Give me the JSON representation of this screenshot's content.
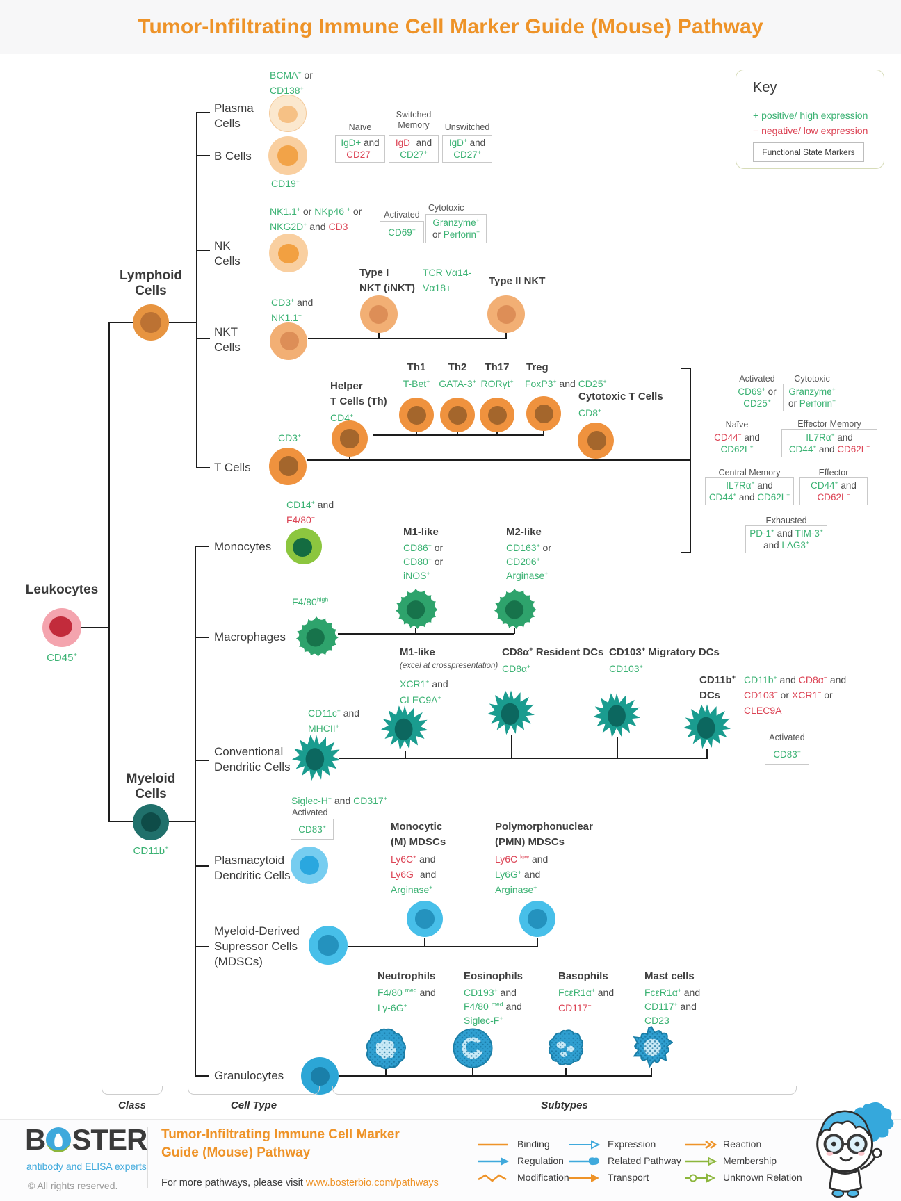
{
  "header": {
    "title": "Tumor-Infiltrating Immune Cell Marker Guide (Mouse) Pathway"
  },
  "key": {
    "heading": "Key",
    "positive": "+ positive/ high expression",
    "negative": "− negative/ low expression",
    "functional_label": "Functional State Markers"
  },
  "axis": {
    "class_label": "Class",
    "cell_type_label": "Cell Type",
    "subtypes_label": "Subtypes"
  },
  "colors": {
    "accent_orange": "#EE9328",
    "positive_green": "#3BB273",
    "negative_red": "#DC4455",
    "lymphoid_orange": "#E79440",
    "myeloid_teal": "#20706B",
    "leukocyte_red": "#C22B3B",
    "monocyte_green": "#8CC63F",
    "macrophage_green": "#2EA36C",
    "dendritic_teal": "#1A9C8F",
    "pdc_blue": "#76CDF0",
    "mdsc_blue": "#47BFE9",
    "granulocyte_blue": "#2CA6D6"
  },
  "tree": {
    "leukocytes": {
      "label": "Leukocytes",
      "marker": [
        {
          "t": "CD45",
          "s": "+",
          "c": "pos"
        }
      ]
    },
    "lymphoid": {
      "l1": "Lymphoid",
      "l2": "Cells"
    },
    "myeloid": {
      "l1": "Myeloid",
      "l2": "Cells",
      "marker": [
        {
          "t": "CD11b",
          "s": "+",
          "c": "pos"
        }
      ]
    },
    "plasma": {
      "l1": "Plasma",
      "l2": "Cells",
      "mk1": [
        {
          "t": "BCMA",
          "s": "+",
          "c": "pos"
        },
        {
          "t": " or"
        }
      ],
      "mk2": [
        {
          "t": "CD138",
          "s": "+",
          "c": "pos"
        }
      ]
    },
    "b": {
      "label": "B Cells",
      "mk": [
        {
          "t": "CD19",
          "s": "+",
          "c": "pos"
        }
      ],
      "naive": {
        "title": "Naïve",
        "b1": [
          {
            "t": "IgD+",
            "c": "pos"
          },
          {
            "t": " and"
          }
        ],
        "b2": [
          {
            "t": "CD27",
            "s": "−",
            "c": "neg"
          }
        ]
      },
      "switched": {
        "t1": "Switched",
        "t2": "Memory",
        "b1": [
          {
            "t": "IgD",
            "s": "−",
            "c": "neg"
          },
          {
            "t": " and"
          }
        ],
        "b2": [
          {
            "t": "CD27",
            "s": "+",
            "c": "pos"
          }
        ]
      },
      "unswitched": {
        "title": "Unswitched",
        "b1": [
          {
            "t": "IgD",
            "s": "+",
            "c": "pos"
          },
          {
            "t": " and"
          }
        ],
        "b2": [
          {
            "t": "CD27",
            "s": "+",
            "c": "pos"
          }
        ]
      }
    },
    "nk": {
      "l1": "NK",
      "l2": "Cells",
      "mk1": [
        {
          "t": "NK1.1",
          "s": "+",
          "c": "pos"
        },
        {
          "t": " or "
        },
        {
          "t": "NKp46 ",
          "s": "+",
          "c": "pos"
        },
        {
          "t": " or"
        }
      ],
      "mk2": [
        {
          "t": "NKG2D",
          "s": "+",
          "c": "pos"
        },
        {
          "t": " and "
        },
        {
          "t": "CD3",
          "s": "−",
          "c": "neg"
        }
      ],
      "activated": {
        "title": "Activated",
        "b1": [
          {
            "t": "CD69",
            "s": "+",
            "c": "pos"
          }
        ]
      },
      "cytotoxic": {
        "title": "Cytotoxic",
        "b1": [
          {
            "t": "Granzyme",
            "s": "+",
            "c": "pos"
          }
        ],
        "b2": [
          {
            "t": "or "
          },
          {
            "t": "Perforin",
            "s": "+",
            "c": "pos"
          }
        ]
      }
    },
    "nkt": {
      "l1": "NKT",
      "l2": "Cells",
      "mk1": [
        {
          "t": "CD3",
          "s": "+",
          "c": "pos"
        },
        {
          "t": " and"
        }
      ],
      "mk2": [
        {
          "t": "NK1.1",
          "s": "+",
          "c": "pos"
        }
      ],
      "type1": {
        "t1": "Type I",
        "t2": "NKT (iNKT)",
        "m1": [
          {
            "t": "TCR Vα14-",
            "c": "pos"
          }
        ],
        "m2": [
          {
            "t": "Vα18+",
            "c": "pos"
          }
        ]
      },
      "type2": {
        "title": "Type II NKT"
      }
    },
    "t": {
      "label": "T Cells",
      "mk": [
        {
          "t": "CD3",
          "s": "+",
          "c": "pos"
        }
      ],
      "helper": {
        "t1": "Helper",
        "t2": "T Cells (Th)",
        "mk": [
          {
            "t": "CD4",
            "s": "+",
            "c": "pos"
          }
        ]
      },
      "th1": {
        "title": "Th1",
        "mk": [
          {
            "t": "T-Bet",
            "s": "+",
            "c": "pos"
          }
        ]
      },
      "th2": {
        "title": "Th2",
        "mk": [
          {
            "t": "GATA-3",
            "s": "+",
            "c": "pos"
          }
        ]
      },
      "th17": {
        "title": "Th17",
        "mk": [
          {
            "t": "RORγt",
            "s": "+",
            "c": "pos"
          }
        ]
      },
      "treg": {
        "title": "Treg",
        "mk": [
          {
            "t": "FoxP3",
            "s": "+",
            "c": "pos"
          },
          {
            "t": " and "
          },
          {
            "t": "CD25",
            "s": "+",
            "c": "pos"
          }
        ]
      },
      "ctl": {
        "title": "Cytotoxic T Cells",
        "mk": [
          {
            "t": "CD8",
            "s": "+",
            "c": "pos"
          }
        ]
      },
      "states": {
        "activated": {
          "title": "Activated",
          "b1": [
            {
              "t": "CD69",
              "s": "+",
              "c": "pos"
            },
            {
              "t": " or"
            }
          ],
          "b2": [
            {
              "t": "CD25",
              "s": "+",
              "c": "pos"
            }
          ]
        },
        "cytotoxic": {
          "title": "Cytotoxic",
          "b1": [
            {
              "t": "Granzyme",
              "s": "+",
              "c": "pos"
            }
          ],
          "b2": [
            {
              "t": "or "
            },
            {
              "t": "Perforin",
              "s": "+",
              "c": "pos"
            }
          ]
        },
        "naive": {
          "title": "Naïve",
          "b1": [
            {
              "t": "CD44",
              "s": "−",
              "c": "neg"
            },
            {
              "t": " and"
            }
          ],
          "b2": [
            {
              "t": "CD62L",
              "s": "+",
              "c": "pos"
            }
          ]
        },
        "em": {
          "title": "Effector Memory",
          "b1": [
            {
              "t": "IL7Rα",
              "s": "+",
              "c": "pos"
            },
            {
              "t": " and"
            }
          ],
          "b2": [
            {
              "t": "CD44",
              "s": "+",
              "c": "pos"
            },
            {
              "t": " and "
            },
            {
              "t": "CD62L",
              "s": "−",
              "c": "neg"
            }
          ]
        },
        "cm": {
          "title": "Central Memory",
          "b1": [
            {
              "t": "IL7Rα",
              "s": "+",
              "c": "pos"
            },
            {
              "t": " and"
            }
          ],
          "b2": [
            {
              "t": "CD44",
              "s": "+",
              "c": "pos"
            },
            {
              "t": " and "
            },
            {
              "t": "CD62L",
              "s": "+",
              "c": "pos"
            }
          ]
        },
        "eff": {
          "title": "Effector",
          "b1": [
            {
              "t": "CD44",
              "s": "+",
              "c": "pos"
            },
            {
              "t": " and"
            }
          ],
          "b2": [
            {
              "t": "CD62L",
              "s": "−",
              "c": "neg"
            }
          ]
        },
        "exh": {
          "title": "Exhausted",
          "b1": [
            {
              "t": "PD-1",
              "s": "+",
              "c": "pos"
            },
            {
              "t": " and "
            },
            {
              "t": "TIM-3",
              "s": "+",
              "c": "pos"
            }
          ],
          "b2": [
            {
              "t": "and "
            },
            {
              "t": "LAG3",
              "s": "+",
              "c": "pos"
            }
          ]
        }
      }
    },
    "mono": {
      "label": "Monocytes",
      "mk1": [
        {
          "t": "CD14",
          "s": "+",
          "c": "pos"
        },
        {
          "t": " and"
        }
      ],
      "mk2": [
        {
          "t": "F4/80",
          "s": "−",
          "c": "neg"
        }
      ],
      "m1": {
        "title": "M1-like",
        "b1": [
          {
            "t": "CD86",
            "s": "+",
            "c": "pos"
          },
          {
            "t": " or"
          }
        ],
        "b2": [
          {
            "t": "CD80",
            "s": "+",
            "c": "pos"
          },
          {
            "t": " or"
          }
        ],
        "b3": [
          {
            "t": "iNOS",
            "s": "+",
            "c": "pos"
          }
        ]
      },
      "m2": {
        "title": "M2-like",
        "b1": [
          {
            "t": "CD163",
            "s": "+",
            "c": "pos"
          },
          {
            "t": " or"
          }
        ],
        "b2": [
          {
            "t": "CD206",
            "s": "+",
            "c": "pos"
          }
        ],
        "b3": [
          {
            "t": "Arginase",
            "s": "+",
            "c": "pos"
          }
        ]
      }
    },
    "macro": {
      "label": "Macrophages",
      "mk": [
        {
          "t": "F4/80",
          "s": "high",
          "c": "pos"
        }
      ]
    },
    "cdc": {
      "l1": "Conventional",
      "l2": "Dendritic Cells",
      "mk1": [
        {
          "t": "CD11c",
          "s": "+",
          "c": "pos"
        },
        {
          "t": " and"
        }
      ],
      "mk2": [
        {
          "t": "MHCII",
          "s": "+",
          "c": "pos"
        }
      ],
      "m1": {
        "title": "M1-like",
        "note": "(excel at crosspresentation)",
        "b1": [
          {
            "t": "XCR1",
            "s": "+",
            "c": "pos"
          },
          {
            "t": " and"
          }
        ],
        "b2": [
          {
            "t": "CLEC9A",
            "s": "+",
            "c": "pos"
          }
        ]
      },
      "cd8": {
        "title": [
          {
            "t": "CD8α",
            "s": "+"
          },
          {
            "t": " Resident DCs"
          }
        ],
        "mk": [
          {
            "t": "CD8α",
            "s": "+",
            "c": "pos"
          }
        ]
      },
      "cd103": {
        "title": [
          {
            "t": "CD103",
            "s": "+"
          },
          {
            "t": " Migratory DCs"
          }
        ],
        "mk": [
          {
            "t": "CD103",
            "s": "+",
            "c": "pos"
          }
        ]
      },
      "cd11b": {
        "t1": [
          {
            "t": "CD11b",
            "s": "+"
          }
        ],
        "t2": [
          {
            "t": "DCs"
          }
        ],
        "b1": [
          {
            "t": "CD11b",
            "s": "+",
            "c": "pos"
          },
          {
            "t": " and "
          },
          {
            "t": "CD8α",
            "s": "−",
            "c": "neg"
          },
          {
            "t": " and"
          }
        ],
        "b2": [
          {
            "t": "CD103",
            "s": "−",
            "c": "neg"
          },
          {
            "t": " or "
          },
          {
            "t": "XCR1",
            "s": "−",
            "c": "neg"
          },
          {
            "t": " or"
          }
        ],
        "b3": [
          {
            "t": "CLEC9A",
            "s": "−",
            "c": "neg"
          }
        ]
      },
      "activated": {
        "title": "Activated",
        "b1": [
          {
            "t": "CD83",
            "s": "+",
            "c": "pos"
          }
        ]
      }
    },
    "pdc": {
      "l1": "Plasmacytoid",
      "l2": "Dendritic Cells",
      "mk": [
        {
          "t": "Siglec-H",
          "s": "+",
          "c": "pos"
        },
        {
          "t": " and "
        },
        {
          "t": "CD317",
          "s": "+",
          "c": "pos"
        }
      ],
      "activated": {
        "title": "Activated",
        "b1": [
          {
            "t": "CD83",
            "s": "+",
            "c": "pos"
          }
        ]
      }
    },
    "mdsc": {
      "l1": "Myeloid-Derived",
      "l2": "Supressor Cells",
      "l3": "(MDSCs)",
      "m": {
        "t1": "Monocytic",
        "t2": "(M) MDSCs",
        "b1": [
          {
            "t": "Ly6C",
            "s": "+",
            "c": "neg"
          },
          {
            "t": " and"
          }
        ],
        "b2": [
          {
            "t": "Ly6G",
            "s": "−",
            "c": "neg"
          },
          {
            "t": " and"
          }
        ],
        "b3": [
          {
            "t": "Arginase",
            "s": "+",
            "c": "pos"
          }
        ]
      },
      "pmn": {
        "t1": "Polymorphonuclear",
        "t2": "(PMN) MDSCs",
        "b1": [
          {
            "t": "Ly6C ",
            "s": "low",
            "c": "neg"
          },
          {
            "t": " and"
          }
        ],
        "b2": [
          {
            "t": "Ly6G",
            "s": "+",
            "c": "pos"
          },
          {
            "t": " and"
          }
        ],
        "b3": [
          {
            "t": "Arginase",
            "s": "+",
            "c": "pos"
          }
        ]
      }
    },
    "gran": {
      "label": "Granulocytes",
      "neut": {
        "title": "Neutrophils",
        "b1": [
          {
            "t": "F4/80 ",
            "s": "med",
            "c": "pos"
          },
          {
            "t": " and"
          }
        ],
        "b2": [
          {
            "t": "Ly-6G",
            "s": "+",
            "c": "pos"
          }
        ]
      },
      "eos": {
        "title": "Eosinophils",
        "b1": [
          {
            "t": "CD193",
            "s": "+",
            "c": "pos"
          },
          {
            "t": " and"
          }
        ],
        "b2": [
          {
            "t": "F4/80 ",
            "s": "med",
            "c": "pos"
          },
          {
            "t": " and"
          }
        ],
        "b3": [
          {
            "t": "Siglec-F",
            "s": "+",
            "c": "pos"
          }
        ]
      },
      "baso": {
        "title": "Basophils",
        "b1": [
          {
            "t": "FcεR1α",
            "s": "+",
            "c": "pos"
          },
          {
            "t": " and"
          }
        ],
        "b2": [
          {
            "t": "CD117",
            "s": "−",
            "c": "neg"
          }
        ]
      },
      "mast": {
        "title": "Mast cells",
        "b1": [
          {
            "t": "FcεR1α",
            "s": "+",
            "c": "pos"
          },
          {
            "t": " and"
          }
        ],
        "b2": [
          {
            "t": "CD117",
            "s": "+",
            "c": "pos"
          },
          {
            "t": " and"
          }
        ],
        "b3": [
          {
            "t": "CD23",
            "c": "pos"
          }
        ]
      }
    }
  },
  "footer": {
    "brand_prefix": "B",
    "brand_suffix": "STER",
    "tagline": "antibody and ELISA experts",
    "copyright": "© All rights reserved.",
    "title_1": "Tumor-Infiltrating Immune Cell Marker",
    "title_2": "Guide (Mouse) Pathway",
    "visit_prefix": "For more pathways, please visit ",
    "visit_link": "www.bosterbio.com/pathways",
    "legend": [
      {
        "label": "Binding"
      },
      {
        "label": "Regulation"
      },
      {
        "label": "Modification"
      },
      {
        "label": "Expression"
      },
      {
        "label": "Related Pathway"
      },
      {
        "label": "Transport"
      },
      {
        "label": "Reaction"
      },
      {
        "label": "Membership"
      },
      {
        "label": "Unknown Relation"
      }
    ]
  }
}
